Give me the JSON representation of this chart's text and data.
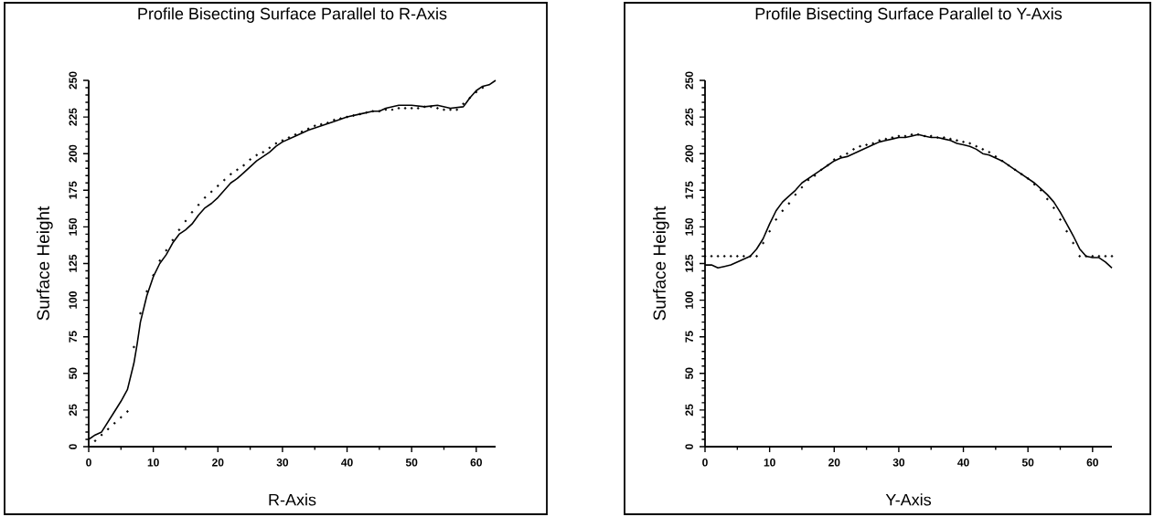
{
  "chart_data": [
    {
      "type": "line",
      "title": "Profile Bisecting Surface Parallel to R-Axis",
      "xlabel": "R-Axis",
      "ylabel": "Surface Height",
      "xlim": [
        0,
        63
      ],
      "ylim": [
        0,
        250
      ],
      "xticks": [
        0,
        10,
        20,
        30,
        40,
        50,
        60
      ],
      "yticks": [
        0,
        25,
        50,
        75,
        100,
        125,
        150,
        175,
        200,
        225,
        250
      ],
      "series": [
        {
          "type": "line",
          "color": "#000000",
          "x": [
            0,
            1,
            2,
            3,
            4,
            5,
            6,
            7,
            7.5,
            8,
            9,
            10,
            11,
            12,
            13,
            14,
            15,
            16,
            17,
            18,
            19,
            20,
            21,
            22,
            23,
            24,
            25,
            26,
            27,
            28,
            29,
            30,
            32,
            34,
            36,
            38,
            40,
            42,
            44,
            45,
            46,
            48,
            50,
            52,
            54,
            56,
            58,
            59,
            60,
            61,
            62,
            63
          ],
          "values": [
            5,
            8,
            10,
            17,
            24,
            31,
            39,
            57,
            70,
            85,
            103,
            116,
            125,
            131,
            139,
            145,
            148,
            152,
            158,
            163,
            166,
            170,
            175,
            180,
            183,
            187,
            191,
            195,
            198,
            201,
            205,
            208,
            212,
            216,
            219,
            222,
            225,
            227,
            229,
            229,
            231,
            233,
            233,
            232,
            233,
            231,
            232,
            238,
            243,
            246,
            247,
            250
          ]
        },
        {
          "type": "scatter",
          "color": "#000000",
          "x": [
            1,
            2,
            3,
            4,
            5,
            6,
            7,
            8,
            9,
            10,
            11,
            12,
            13,
            14,
            15,
            16,
            17,
            18,
            19,
            20,
            21,
            22,
            23,
            24,
            25,
            26,
            27,
            28,
            29,
            30,
            31,
            32,
            33,
            34,
            35,
            36,
            37,
            38,
            39,
            40,
            41,
            42,
            43,
            44,
            45,
            46,
            47,
            48,
            49,
            50,
            51,
            52,
            53,
            54,
            55,
            56,
            57,
            58,
            59,
            60,
            61
          ],
          "values": [
            4,
            8,
            12,
            16,
            20,
            24,
            68,
            91,
            106,
            117,
            127,
            134,
            141,
            148,
            154,
            160,
            165,
            170,
            174,
            178,
            182,
            186,
            189,
            192,
            196,
            199,
            201,
            204,
            207,
            209,
            211,
            213,
            215,
            217,
            219,
            220,
            221,
            223,
            224,
            225,
            226,
            227,
            228,
            229,
            229,
            230,
            230,
            231,
            231,
            231,
            231,
            232,
            232,
            231,
            230,
            230,
            230,
            234,
            238,
            242,
            245
          ]
        }
      ]
    },
    {
      "type": "line",
      "title": "Profile Bisecting Surface Parallel to Y-Axis",
      "xlabel": "Y-Axis",
      "ylabel": "Surface Height",
      "xlim": [
        0,
        63
      ],
      "ylim": [
        0,
        250
      ],
      "xticks": [
        0,
        10,
        20,
        30,
        40,
        50,
        60
      ],
      "yticks": [
        0,
        25,
        50,
        75,
        100,
        125,
        150,
        175,
        200,
        225,
        250
      ],
      "series": [
        {
          "type": "line",
          "color": "#000000",
          "x": [
            0,
            1,
            2,
            3,
            4,
            5,
            6,
            7,
            8,
            9,
            10,
            11,
            12,
            13,
            14,
            15,
            16,
            17,
            18,
            19,
            20,
            21,
            22,
            23,
            24,
            25,
            26,
            27,
            28,
            29,
            30,
            31,
            32,
            33,
            34,
            35,
            36,
            37,
            38,
            39,
            40,
            41,
            42,
            43,
            44,
            45,
            46,
            47,
            48,
            49,
            50,
            51,
            52,
            53,
            54,
            55,
            56,
            57,
            58,
            59,
            60,
            61,
            62,
            63
          ],
          "values": [
            124,
            124,
            122,
            123,
            124,
            126,
            128,
            130,
            135,
            142,
            152,
            161,
            167,
            171,
            175,
            180,
            183,
            186,
            189,
            192,
            195,
            197,
            198,
            200,
            202,
            204,
            206,
            208,
            209,
            210,
            211,
            211,
            212,
            213,
            212,
            211,
            211,
            210,
            209,
            207,
            206,
            205,
            203,
            200,
            199,
            197,
            195,
            192,
            189,
            186,
            183,
            180,
            176,
            172,
            167,
            160,
            152,
            144,
            135,
            130,
            129,
            129,
            126,
            122
          ]
        },
        {
          "type": "scatter",
          "color": "#000000",
          "x": [
            0,
            1,
            2,
            3,
            4,
            5,
            6,
            7,
            8,
            9,
            10,
            11,
            12,
            13,
            14,
            15,
            16,
            17,
            18,
            19,
            20,
            21,
            22,
            23,
            24,
            25,
            26,
            27,
            28,
            29,
            30,
            31,
            32,
            33,
            34,
            35,
            36,
            37,
            38,
            39,
            40,
            41,
            42,
            43,
            44,
            45,
            46,
            47,
            48,
            49,
            50,
            51,
            52,
            53,
            54,
            55,
            56,
            57,
            58,
            59,
            60,
            61,
            62,
            63
          ],
          "values": [
            130,
            130,
            130,
            130,
            130,
            130,
            130,
            130,
            130,
            139,
            147,
            155,
            161,
            166,
            172,
            177,
            182,
            185,
            189,
            192,
            196,
            198,
            200,
            203,
            205,
            206,
            207,
            209,
            210,
            211,
            212,
            212,
            213,
            213,
            212,
            212,
            211,
            211,
            210,
            209,
            208,
            207,
            205,
            203,
            201,
            198,
            195,
            192,
            189,
            186,
            183,
            179,
            175,
            169,
            163,
            155,
            147,
            139,
            130,
            130,
            130,
            130,
            130,
            130
          ]
        }
      ]
    }
  ]
}
